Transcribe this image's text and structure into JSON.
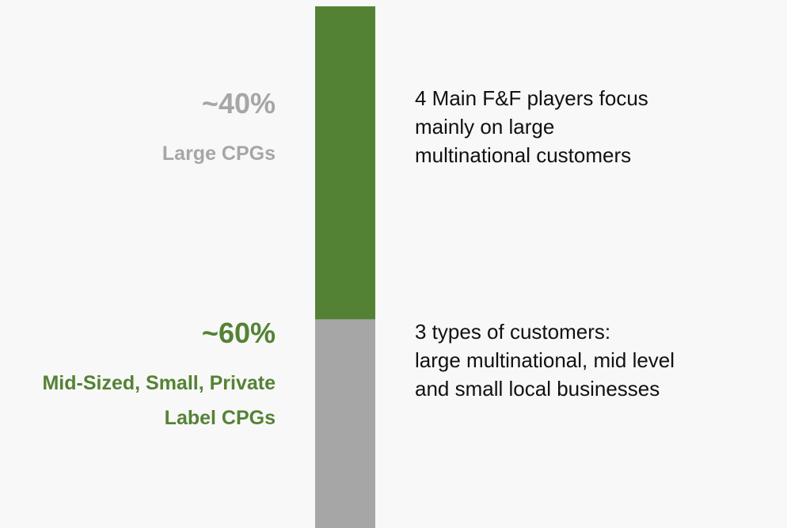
{
  "chart_data": {
    "type": "bar",
    "stacked": true,
    "categories": [
      null
    ],
    "series": [
      {
        "name": "Large CPGs",
        "color": "#a6a6a6",
        "values": [
          40
        ],
        "value_labels": [
          "~40%"
        ]
      },
      {
        "name": "Mid-Sized, Small, Private Label CPGs",
        "color": "#548235",
        "values": [
          60
        ],
        "value_labels": [
          "~60%"
        ]
      }
    ],
    "ylim": [
      0,
      100
    ],
    "annotations": [
      {
        "lines": [
          "4 Main F&F players focus",
          "mainly on large",
          "multinational customers"
        ]
      },
      {
        "lines": [
          "3 types of customers:",
          "large multinational, mid level",
          "and small local businesses"
        ]
      }
    ]
  }
}
